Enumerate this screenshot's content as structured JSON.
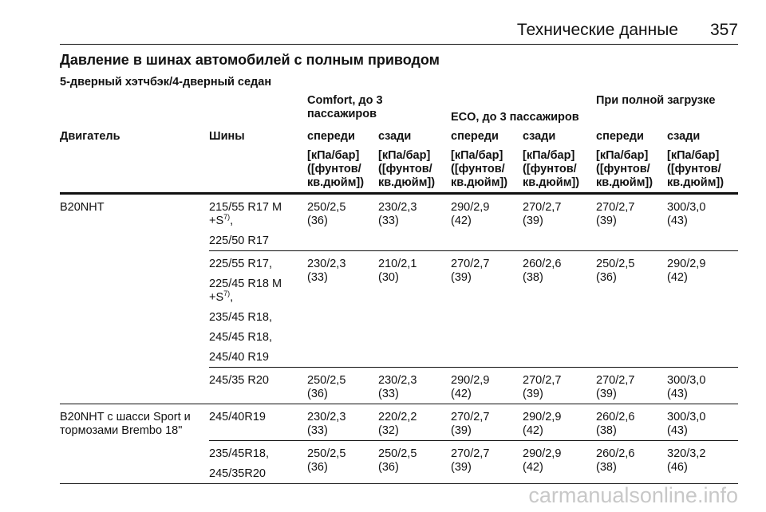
{
  "header": {
    "section": "Технические данные",
    "page": "357"
  },
  "title": "Давление в шинах автомобилей с полным приводом",
  "subtitle": "5-дверный хэтчбэк/4-дверный седан",
  "table": {
    "groups": [
      "Comfort, до 3 пассажиров",
      "ECO, до 3 пассажиров",
      "При полной загрузке"
    ],
    "columns": [
      "Двигатель",
      "Шины",
      "спереди",
      "сзади",
      "спереди",
      "сзади",
      "спереди",
      "сзади"
    ],
    "unit": [
      "[кПа/бар]",
      "([фунтов/",
      "кв.дюйм])"
    ],
    "rows": [
      {
        "engine": "B20NHT",
        "tires": [
          {
            "text": "215/55 R17 M +S",
            "note": "7)",
            "suffix": ","
          },
          "225/50 R17"
        ],
        "pressures": [
          [
            "250/2,5",
            "(36)"
          ],
          [
            "230/2,3",
            "(33)"
          ],
          [
            "290/2,9",
            "(42)"
          ],
          [
            "270/2,7",
            "(39)"
          ],
          [
            "270/2,7",
            "(39)"
          ],
          [
            "300/3,0",
            "(43)"
          ]
        ]
      },
      {
        "tires": [
          "225/55 R17,",
          {
            "text": "225/45 R18 M +S",
            "note": "7)",
            "suffix": ","
          },
          "235/45 R18,",
          "245/45 R18,",
          "245/40 R19"
        ],
        "pressures": [
          [
            "230/2,3",
            "(33)"
          ],
          [
            "210/2,1",
            "(30)"
          ],
          [
            "270/2,7",
            "(39)"
          ],
          [
            "260/2,6",
            "(38)"
          ],
          [
            "250/2,5",
            "(36)"
          ],
          [
            "290/2,9",
            "(42)"
          ]
        ]
      },
      {
        "tires": [
          "245/35 R20"
        ],
        "pressures": [
          [
            "250/2,5",
            "(36)"
          ],
          [
            "230/2,3",
            "(33)"
          ],
          [
            "290/2,9",
            "(42)"
          ],
          [
            "270/2,7",
            "(39)"
          ],
          [
            "270/2,7",
            "(39)"
          ],
          [
            "300/3,0",
            "(43)"
          ]
        ]
      },
      {
        "engine": "B20NHT с шасси Sport и тормозами Brembo 18\"",
        "tires": [
          "245/40R19"
        ],
        "pressures": [
          [
            "230/2,3",
            "(33)"
          ],
          [
            "220/2,2",
            "(32)"
          ],
          [
            "270/2,7",
            "(39)"
          ],
          [
            "290/2,9",
            "(42)"
          ],
          [
            "260/2,6",
            "(38)"
          ],
          [
            "300/3,0",
            "(43)"
          ]
        ]
      },
      {
        "tires": [
          "235/45R18,",
          "245/35R20"
        ],
        "pressures": [
          [
            "250/2,5",
            "(36)"
          ],
          [
            "250/2,5",
            "(36)"
          ],
          [
            "270/2,7",
            "(39)"
          ],
          [
            "290/2,9",
            "(42)"
          ],
          [
            "260/2,6",
            "(38)"
          ],
          [
            "320/3,2",
            "(46)"
          ]
        ]
      }
    ]
  },
  "watermark": "carmanualsonline.info"
}
